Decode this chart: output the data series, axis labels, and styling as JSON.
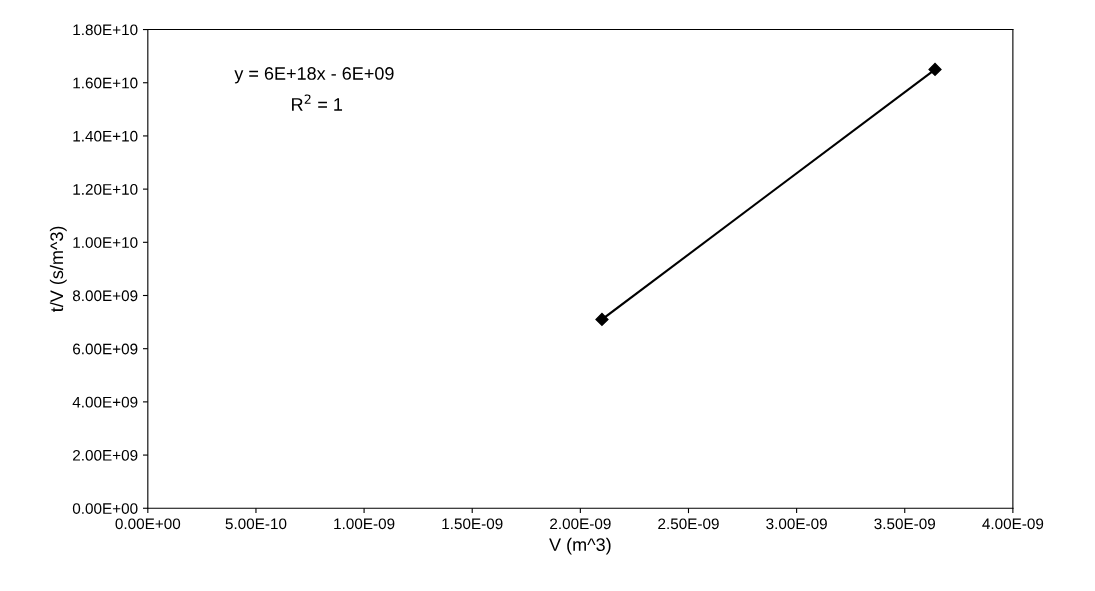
{
  "chart_data": {
    "type": "line",
    "xlabel": "V (m^3)",
    "ylabel": "t/V (s/m^3)",
    "x": [
      2.1e-09,
      3.64e-09
    ],
    "series": [
      {
        "color": "#000000",
        "values": [
          7100000000.0,
          16500000000.0
        ]
      }
    ],
    "marker": "diamond",
    "line_style": "solid",
    "grid": false,
    "legend": false,
    "xlim": [
      0,
      4e-09
    ],
    "xticks": [
      {
        "value": 0,
        "label": "0.00E+00"
      },
      {
        "value": 5e-10,
        "label": "5.00E-10"
      },
      {
        "value": 1e-09,
        "label": "1.00E-09"
      },
      {
        "value": 1.5e-09,
        "label": "1.50E-09"
      },
      {
        "value": 2e-09,
        "label": "2.00E-09"
      },
      {
        "value": 2.5e-09,
        "label": "2.50E-09"
      },
      {
        "value": 3e-09,
        "label": "3.00E-09"
      },
      {
        "value": 3.5e-09,
        "label": "3.50E-09"
      },
      {
        "value": 4e-09,
        "label": "4.00E-09"
      }
    ],
    "ylim": [
      0,
      18000000000.0
    ],
    "yticks": [
      {
        "value": 0,
        "label": "0.00E+00"
      },
      {
        "value": 2000000000.0,
        "label": "2.00E+09"
      },
      {
        "value": 4000000000.0,
        "label": "4.00E+09"
      },
      {
        "value": 6000000000.0,
        "label": "6.00E+09"
      },
      {
        "value": 8000000000.0,
        "label": "8.00E+09"
      },
      {
        "value": 10000000000.0,
        "label": "1.00E+10"
      },
      {
        "value": 12000000000.0,
        "label": "1.20E+10"
      },
      {
        "value": 14000000000.0,
        "label": "1.40E+10"
      },
      {
        "value": 16000000000.0,
        "label": "1.60E+10"
      },
      {
        "value": 18000000000.0,
        "label": "1.80E+10"
      }
    ],
    "annotations": [
      "y = 6E+18x - 6E+09",
      "R$^{2}$ = 1"
    ]
  }
}
